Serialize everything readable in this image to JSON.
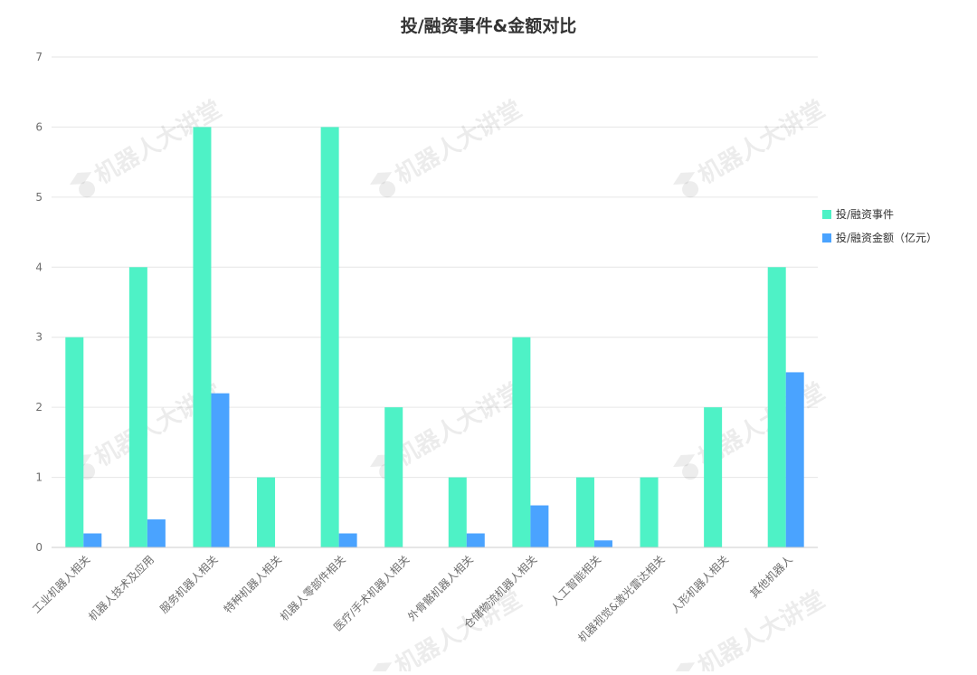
{
  "chart_data": {
    "type": "bar",
    "title": "投/融资事件&金额对比",
    "xlabel": "",
    "ylabel": "",
    "ylim": [
      0,
      7
    ],
    "yticks": [
      "0",
      "1",
      "2",
      "3",
      "4",
      "5",
      "6",
      "7"
    ],
    "grid": true,
    "legend_position": "right",
    "categories": [
      "工业机器人相关",
      "机器人技术及应用",
      "服务机器人相关",
      "特种机器人相关",
      "机器人零部件相关",
      "医疗/手术机器人相关",
      "外骨骼机器人相关",
      "仓储物流机器人相关",
      "人工智能相关",
      "机器视觉&激光雷达相关",
      "人形机器人相关",
      "其他机器人"
    ],
    "series": [
      {
        "name": "投/融资事件",
        "color": "#4ef2c6",
        "values": [
          3,
          4,
          6,
          1,
          6,
          2,
          1,
          3,
          1,
          1,
          2,
          4
        ]
      },
      {
        "name": "投/融资金额（亿元）",
        "color": "#4aa3ff",
        "values": [
          0.2,
          0.4,
          2.2,
          0,
          0.2,
          0,
          0.2,
          0.6,
          0.1,
          0,
          0,
          2.5
        ]
      }
    ]
  },
  "watermark": {
    "text": "机器人大讲堂",
    "icon": "graduation-cap-icon"
  }
}
